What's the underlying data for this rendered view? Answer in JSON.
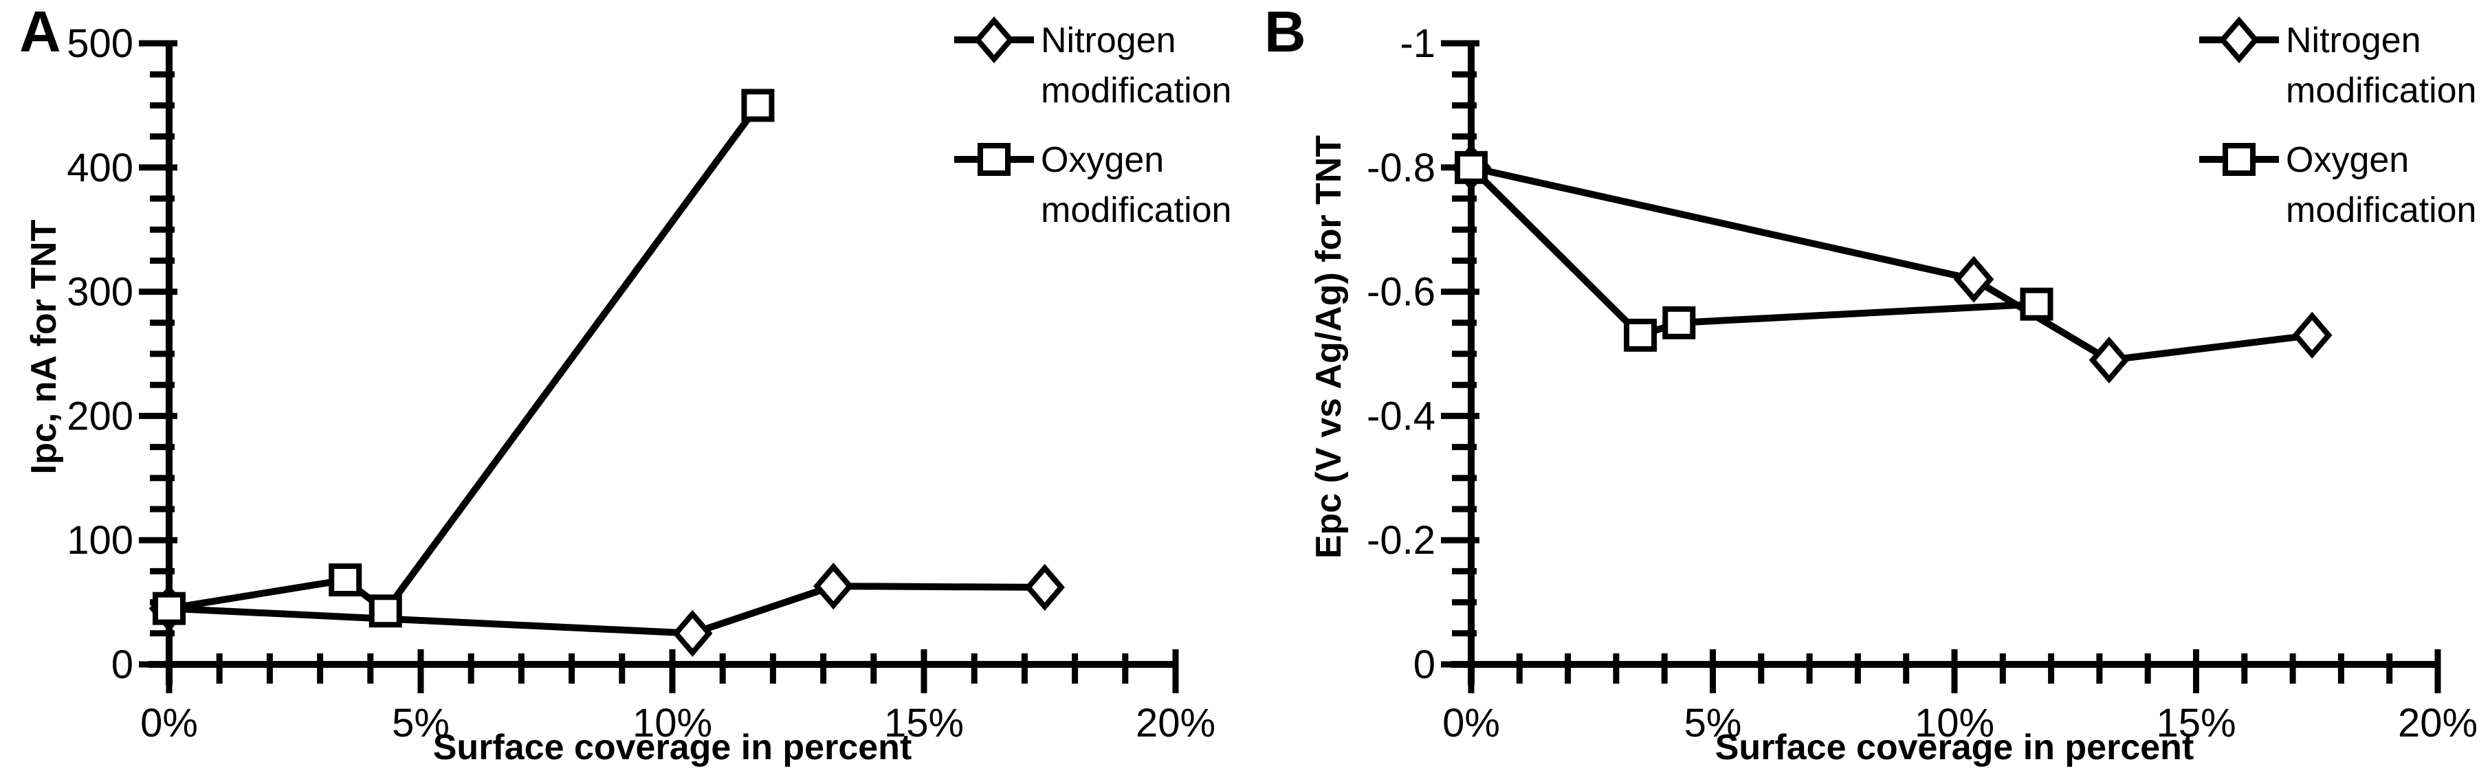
{
  "figure": {
    "background_color": "#ffffff",
    "line_color": "#000000",
    "marker_fill": "#ffffff"
  },
  "chart_data": [
    {
      "type": "line",
      "panel_label": "A",
      "xlabel": "Surface coverage in percent",
      "ylabel": "Ipc, nA for TNT",
      "xlim": [
        0,
        20
      ],
      "ylim": [
        0,
        500
      ],
      "x_major_step": 5,
      "x_minor_step": 1,
      "y_major_step": 100,
      "y_minor_step": 25,
      "x_tick_labels": [
        "0%",
        "5%",
        "10%",
        "15%",
        "20%"
      ],
      "y_tick_labels": [
        "0",
        "100",
        "200",
        "300",
        "400",
        "500"
      ],
      "y_reversed": false,
      "grid": false,
      "legend_position": "top-right",
      "series": [
        {
          "name": "Nitrogen modification",
          "legend_lines": [
            "Nitrogen",
            "modification"
          ],
          "marker": "diamond",
          "x": [
            0,
            10.4,
            13.2,
            17.4
          ],
          "y": [
            45,
            25,
            63,
            62
          ]
        },
        {
          "name": "Oxygen modification",
          "legend_lines": [
            "Oxygen",
            "modification"
          ],
          "marker": "square",
          "x": [
            0,
            3.5,
            4.3,
            11.7
          ],
          "y": [
            45,
            68,
            43,
            450
          ]
        }
      ]
    },
    {
      "type": "line",
      "panel_label": "B",
      "xlabel": "Surface coverage in percent",
      "ylabel": "Epc (V vs Ag/Ag) for TNT",
      "xlim": [
        0,
        20
      ],
      "ylim": [
        -1,
        0
      ],
      "x_major_step": 5,
      "x_minor_step": 1,
      "y_major_step": 0.2,
      "y_minor_step": 0.05,
      "x_tick_labels": [
        "0%",
        "5%",
        "10%",
        "15%",
        "20%"
      ],
      "y_tick_labels": [
        "-1",
        "-0.8",
        "-0.6",
        "-0.4",
        "-0.2",
        "0"
      ],
      "y_reversed": true,
      "grid": false,
      "legend_position": "top-right",
      "series": [
        {
          "name": "Nitrogen modification",
          "legend_lines": [
            "Nitrogen",
            "modification"
          ],
          "marker": "diamond",
          "x": [
            0,
            10.4,
            13.2,
            17.4
          ],
          "y": [
            -0.8,
            -0.62,
            -0.49,
            -0.53
          ]
        },
        {
          "name": "Oxygen modification",
          "legend_lines": [
            "Oxygen",
            "modification"
          ],
          "marker": "square",
          "x": [
            0,
            3.5,
            4.3,
            11.7
          ],
          "y": [
            -0.8,
            -0.53,
            -0.55,
            -0.58
          ]
        }
      ]
    }
  ]
}
